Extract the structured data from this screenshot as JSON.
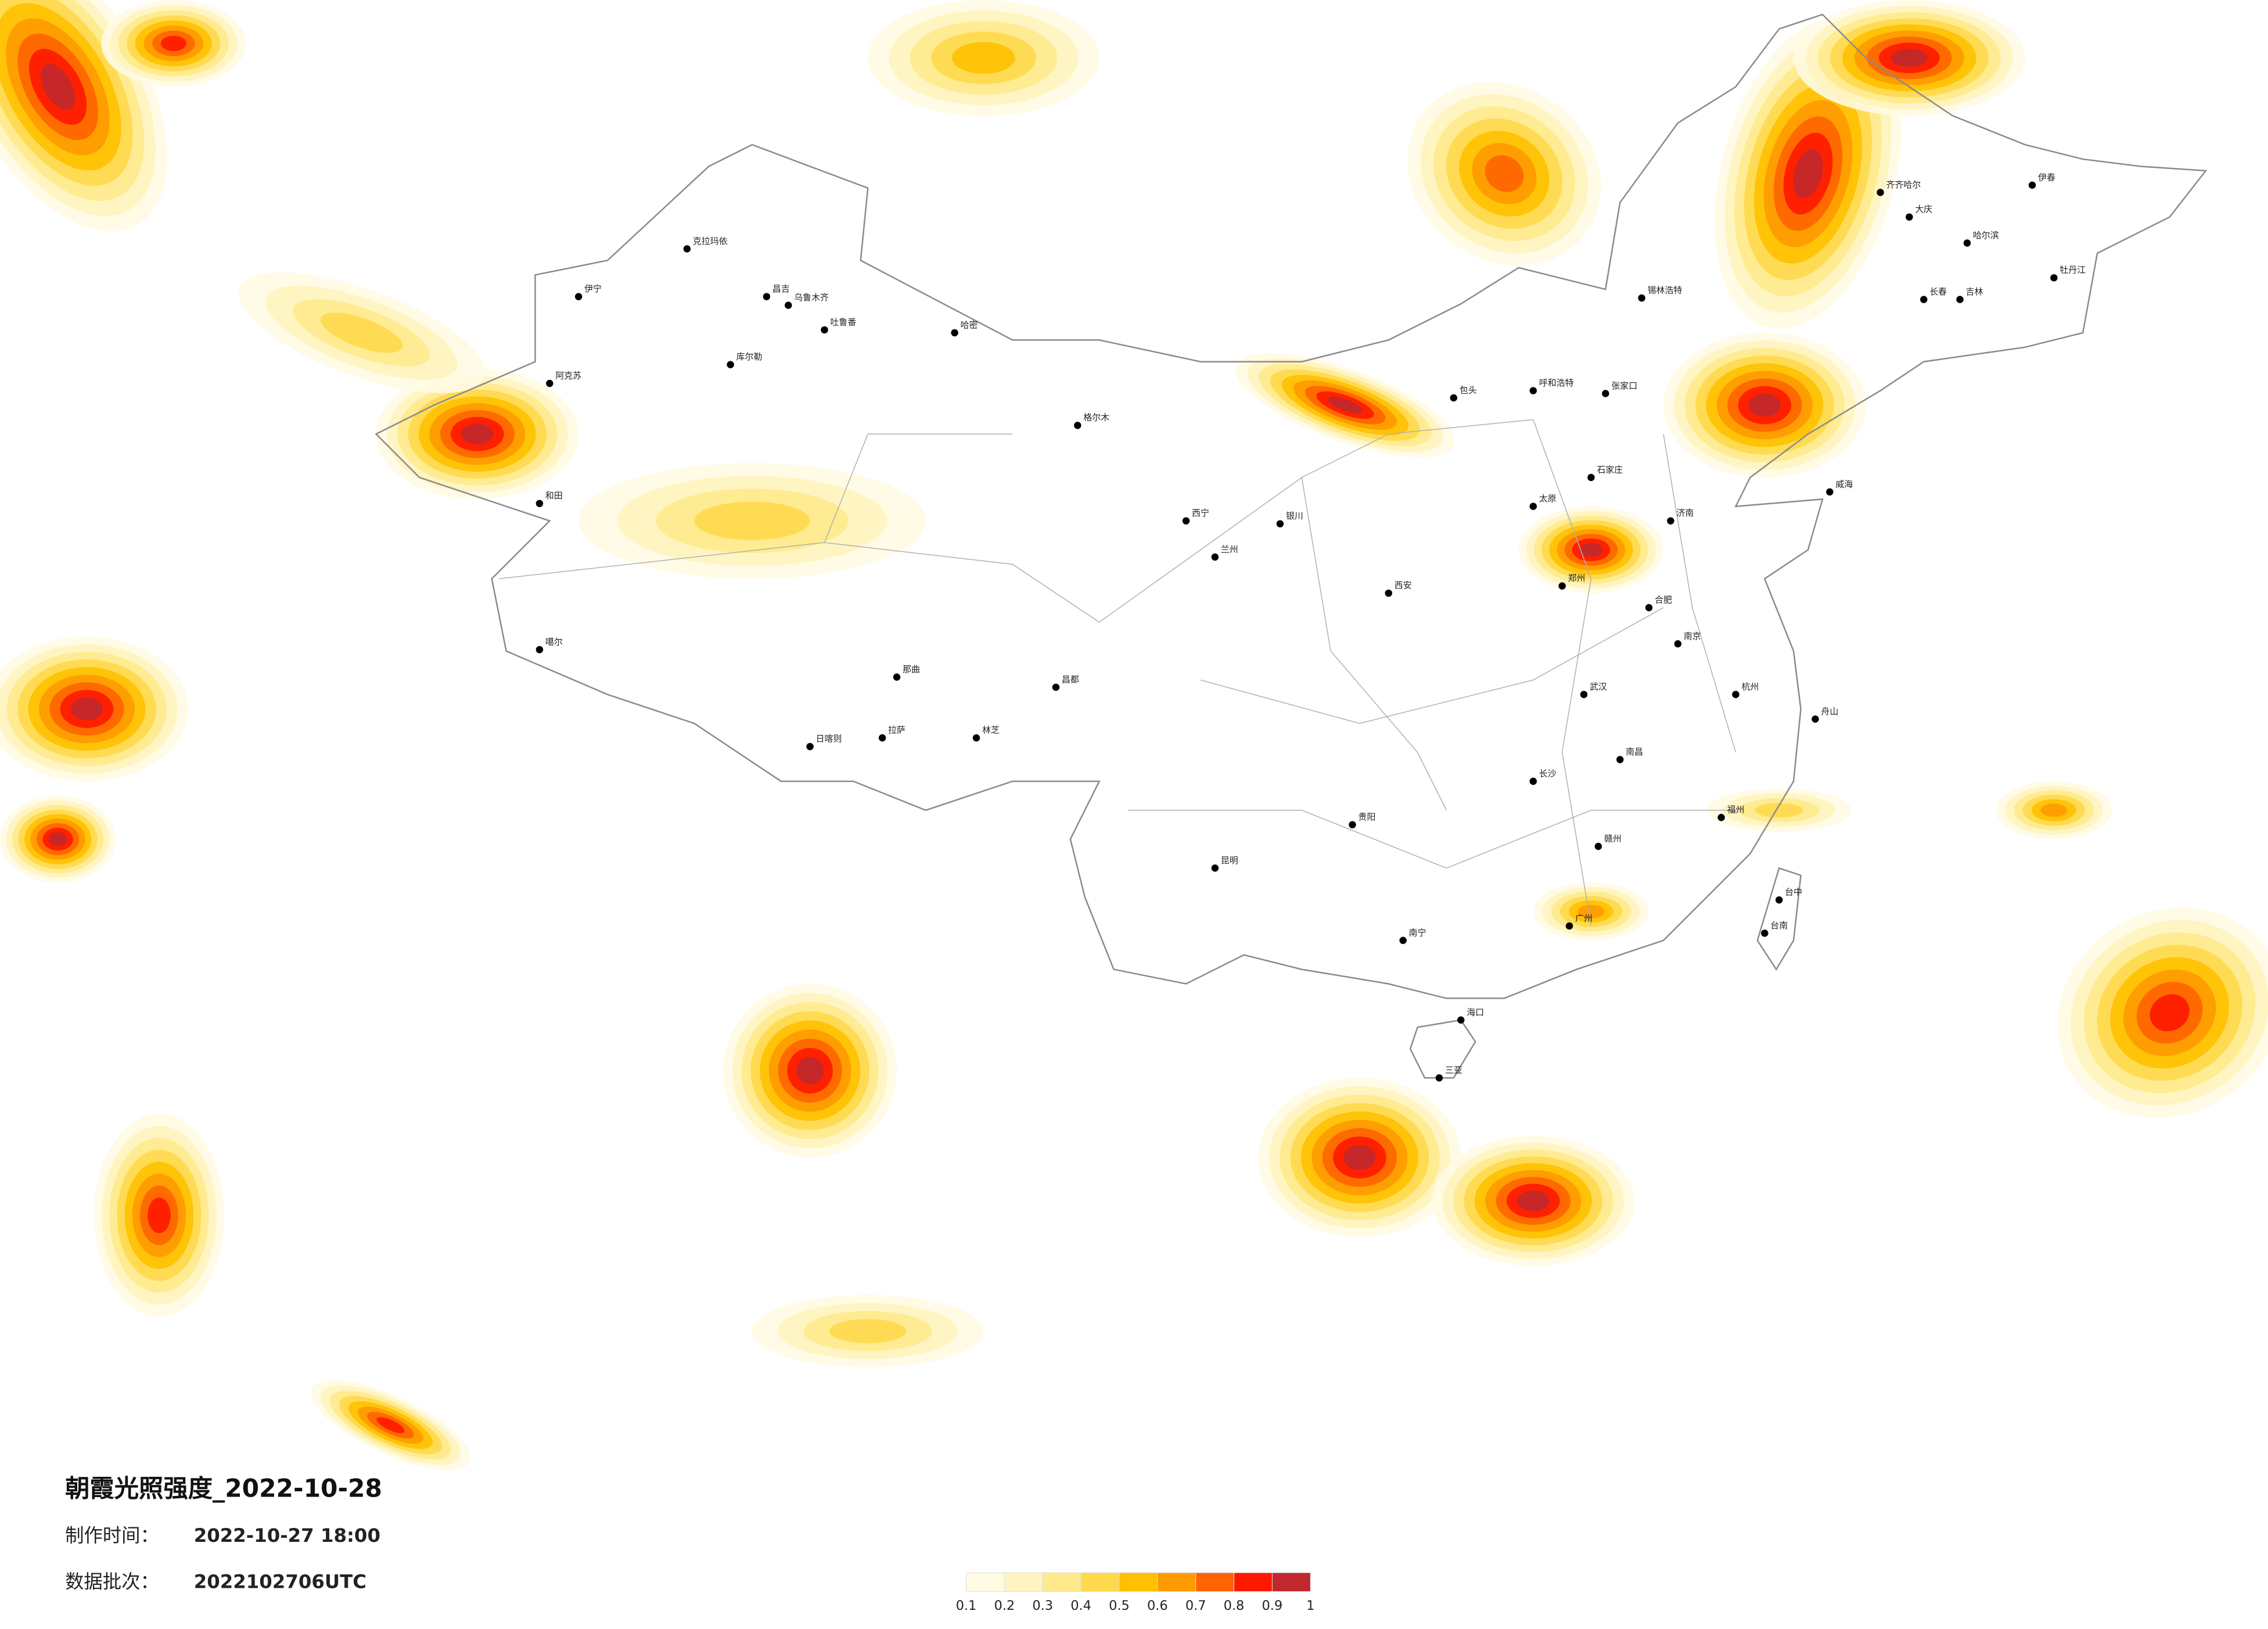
{
  "title": "朝霞光照强度_2022-10-28",
  "production_time": {
    "label": "制作时间：",
    "value": "2022-10-27 18:00"
  },
  "data_batch": {
    "label": "数据批次：",
    "value": "2022102706UTC"
  },
  "legend": {
    "ticks": [
      0.1,
      0.2,
      0.3,
      0.4,
      0.5,
      0.6,
      0.7,
      0.8,
      0.9,
      1
    ],
    "colors": [
      "#fffbe3",
      "#fff4bf",
      "#ffea8c",
      "#ffd94d",
      "#ffc000",
      "#ff9a00",
      "#ff6400",
      "#ff1800",
      "#c0282d"
    ]
  },
  "cities": [
    "克拉玛依",
    "伊宁",
    "昌吉",
    "乌鲁木齐",
    "吐鲁番",
    "哈密",
    "库尔勒",
    "阿克苏",
    "和田",
    "噶尔",
    "日喀则",
    "拉萨",
    "林芝",
    "那曲",
    "昌都",
    "格尔木",
    "西宁",
    "兰州",
    "银川",
    "包头",
    "呼和浩特",
    "张家口",
    "锡林浩特",
    "齐齐哈尔",
    "大庆",
    "哈尔滨",
    "长春",
    "吉林",
    "伊春",
    "牡丹江",
    "济南",
    "郑州",
    "武汉",
    "南京",
    "杭州",
    "福州",
    "广州",
    "南宁",
    "昆明",
    "贵阳",
    "海口",
    "台中",
    "台南",
    "石家庄",
    "太原",
    "西安",
    "长沙",
    "南昌",
    "合肥",
    "威海",
    "舟山",
    "赣州",
    "三亚"
  ]
}
